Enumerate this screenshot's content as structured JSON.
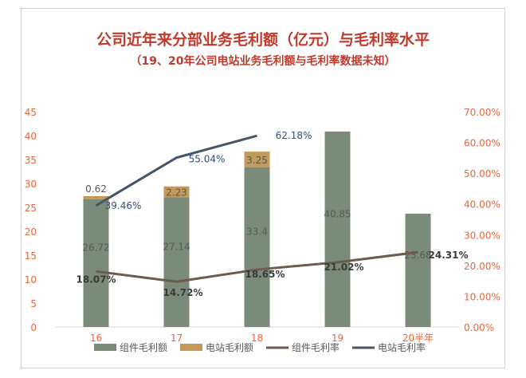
{
  "chart_data": {
    "type": "bar",
    "title": "公司近年来分部业务毛利额（亿元）与毛利率水平",
    "subtitle": "（19、20年公司电站业务毛利额与毛利率数据未知）",
    "categories": [
      "16",
      "17",
      "18",
      "19",
      "20半年"
    ],
    "y_left": {
      "min": 0,
      "max": 45,
      "ticks": [
        "0",
        "5",
        "10",
        "15",
        "20",
        "25",
        "30",
        "35",
        "40",
        "45"
      ]
    },
    "y_right": {
      "min": 0,
      "max": 0.7,
      "ticks": [
        "0.00%",
        "10.00%",
        "20.00%",
        "30.00%",
        "40.00%",
        "50.00%",
        "60.00%",
        "70.00%"
      ]
    },
    "series": [
      {
        "name": "组件毛利额",
        "kind": "stacked-bar",
        "color": "#7b8b7a",
        "values": [
          26.72,
          27.14,
          33.4,
          40.85,
          23.68
        ],
        "labels": [
          "26.72",
          "27.14",
          "33.4",
          "40.85",
          "23.68"
        ]
      },
      {
        "name": "电站毛利额",
        "kind": "stacked-bar",
        "color": "#c49a58",
        "values": [
          0.62,
          2.23,
          3.25,
          null,
          null
        ],
        "labels": [
          "0.62",
          "2.23",
          "3.25",
          "",
          ""
        ]
      },
      {
        "name": "组件毛利率",
        "kind": "line",
        "axis": "right",
        "color": "#6e5a4e",
        "values": [
          0.1807,
          0.1472,
          0.1865,
          0.2102,
          0.2431
        ],
        "labels": [
          "18.07%",
          "14.72%",
          "18.65%",
          "21.02%",
          "24.31%"
        ]
      },
      {
        "name": "电站毛利率",
        "kind": "line",
        "axis": "right",
        "color": "#44546a",
        "values": [
          0.3946,
          0.5504,
          0.6218,
          null,
          null
        ],
        "labels": [
          "39.46%",
          "55.04%",
          "62.18%",
          "",
          ""
        ]
      }
    ],
    "legend_position": "bottom",
    "grid": false
  }
}
